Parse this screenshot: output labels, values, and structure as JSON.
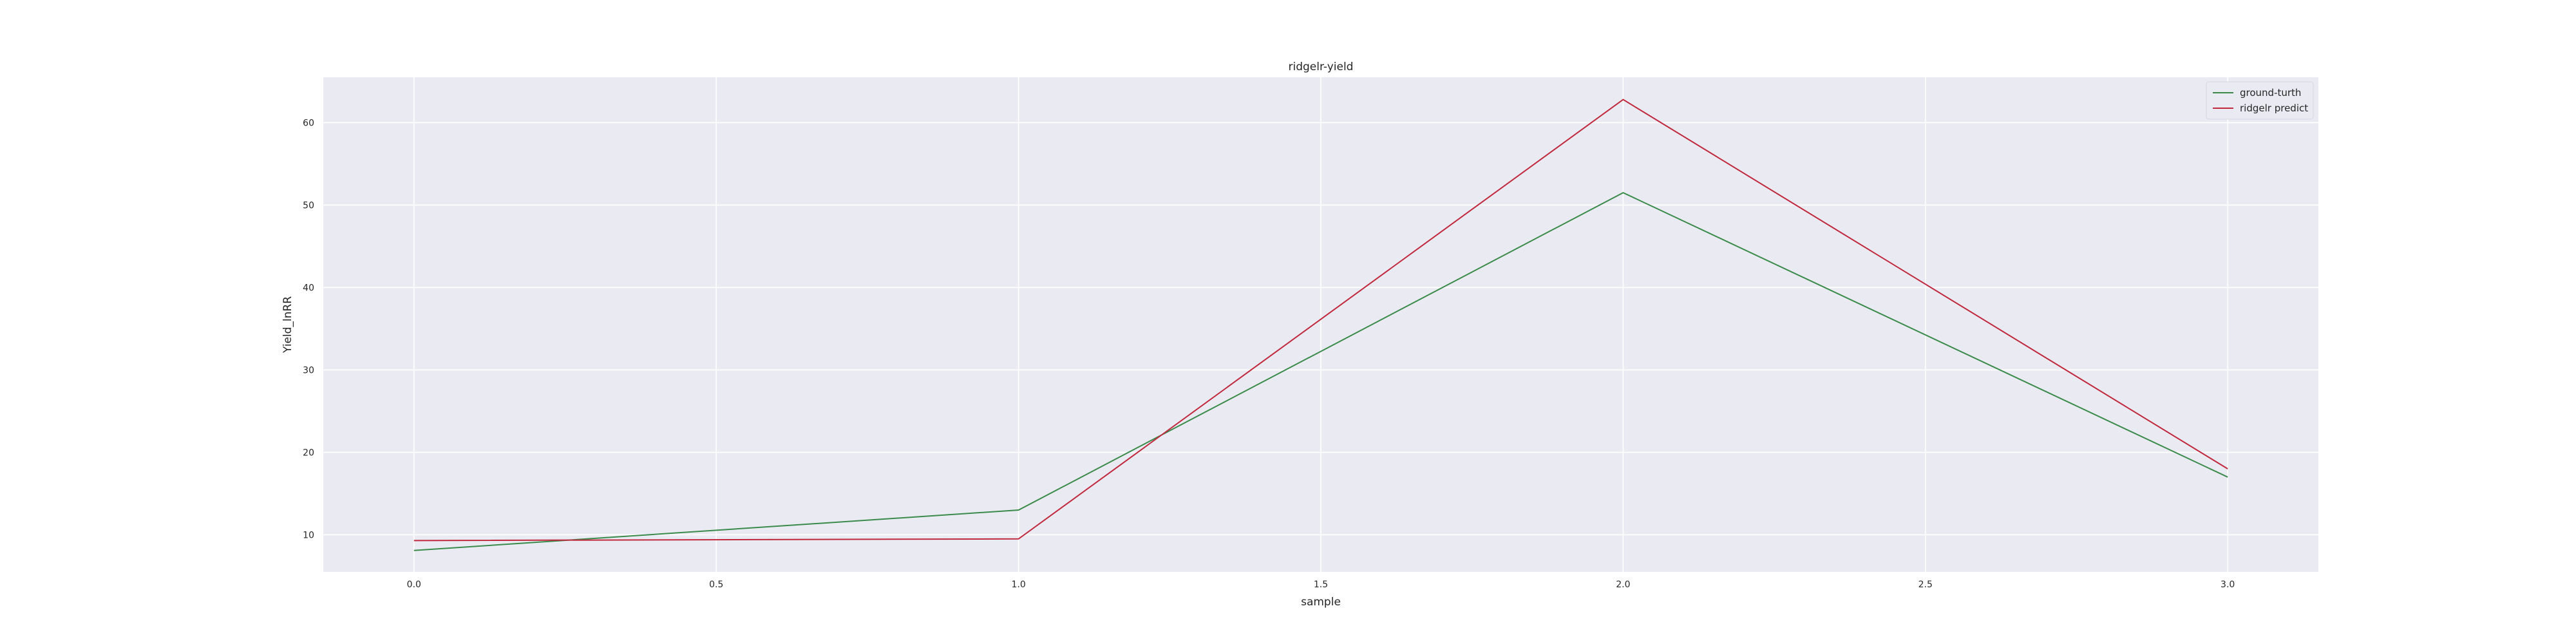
{
  "chart_data": {
    "type": "line",
    "title": "ridgelr-yield",
    "xlabel": "sample",
    "ylabel": "Yield_lnRR",
    "x": [
      0,
      1,
      2,
      3
    ],
    "series": [
      {
        "name": "ground-turth",
        "values": [
          8.1,
          13.0,
          51.5,
          17.0
        ],
        "color": "#3a8a4a"
      },
      {
        "name": "ridgelr predict",
        "values": [
          9.3,
          9.5,
          62.8,
          18.0
        ],
        "color": "#c0283c"
      }
    ],
    "xlim": [
      -0.15,
      3.15
    ],
    "ylim": [
      5.5,
      65.5
    ],
    "xticks": [
      0.0,
      0.5,
      1.0,
      1.5,
      2.0,
      2.5,
      3.0
    ],
    "xtick_labels": [
      "0.0",
      "0.5",
      "1.0",
      "1.5",
      "2.0",
      "2.5",
      "3.0"
    ],
    "yticks": [
      10,
      20,
      30,
      40,
      50,
      60
    ],
    "ytick_labels": [
      "10",
      "20",
      "30",
      "40",
      "50",
      "60"
    ],
    "grid": true,
    "legend_position": "top-right",
    "background": "#eaeaf2",
    "grid_color": "#ffffff"
  }
}
